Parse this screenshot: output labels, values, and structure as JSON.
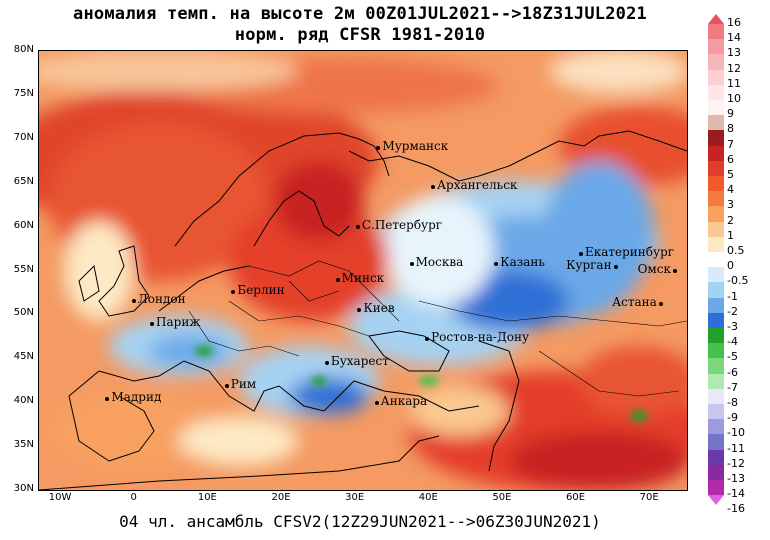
{
  "title_line1": "аномалия темп. на высоте 2м 00Z01JUL2021-->18Z31JUL2021",
  "title_line2": "норм. ряд CFSR 1981-2010",
  "footer": "04 чл. ансамбль CFSV2(12Z29JUN2021-->06Z30JUN2021)",
  "map": {
    "lon_range": [
      -13,
      75
    ],
    "lat_range": [
      30,
      80
    ],
    "lat_labels": [
      "80N",
      "75N",
      "70N",
      "65N",
      "60N",
      "55N",
      "50N",
      "45N",
      "40N",
      "35N",
      "30N"
    ],
    "lon_labels": [
      "10W",
      "0",
      "10E",
      "20E",
      "30E",
      "40E",
      "50E",
      "60E",
      "70E"
    ],
    "cities": [
      {
        "name": "Мурманск",
        "lon": 33.1,
        "lat": 68.97
      },
      {
        "name": "Архангельск",
        "lon": 40.5,
        "lat": 64.55
      },
      {
        "name": "С.Петербург",
        "lon": 30.3,
        "lat": 59.93
      },
      {
        "name": "Екатеринбург",
        "lon": 60.6,
        "lat": 56.84
      },
      {
        "name": "Москва",
        "lon": 37.6,
        "lat": 55.75
      },
      {
        "name": "Казань",
        "lon": 49.1,
        "lat": 55.79
      },
      {
        "name": "Курган",
        "lon": 65.3,
        "lat": 55.44
      },
      {
        "name": "Минск",
        "lon": 27.56,
        "lat": 53.9
      },
      {
        "name": "Омск",
        "lon": 73.37,
        "lat": 54.98
      },
      {
        "name": "Берлин",
        "lon": 13.4,
        "lat": 52.52
      },
      {
        "name": "Лондон",
        "lon": -0.13,
        "lat": 51.5
      },
      {
        "name": "Киев",
        "lon": 30.52,
        "lat": 50.45
      },
      {
        "name": "Астана",
        "lon": 71.45,
        "lat": 51.17
      },
      {
        "name": "Париж",
        "lon": 2.35,
        "lat": 48.86
      },
      {
        "name": "Ростов-на-Дону",
        "lon": 39.7,
        "lat": 47.24
      },
      {
        "name": "Бухарест",
        "lon": 26.1,
        "lat": 44.43
      },
      {
        "name": "Рим",
        "lon": 12.5,
        "lat": 41.9
      },
      {
        "name": "Мадрид",
        "lon": -3.7,
        "lat": 40.42
      },
      {
        "name": "Анкара",
        "lon": 32.85,
        "lat": 39.93
      }
    ]
  },
  "colorbar": {
    "labels": [
      "16",
      "14",
      "13",
      "12",
      "11",
      "10",
      "9",
      "8",
      "7",
      "6",
      "5",
      "4",
      "3",
      "2",
      "1",
      "0.5",
      "0",
      "-0.5",
      "-1",
      "-2",
      "-3",
      "-4",
      "-5",
      "-6",
      "-7",
      "-8",
      "-9",
      "-10",
      "-11",
      "-12",
      "-13",
      "-14",
      "-16"
    ],
    "colors": [
      "#e8505a",
      "#f07b83",
      "#f59aa0",
      "#f7b6bb",
      "#fad0d3",
      "#fde4e6",
      "#fff2f2",
      "#e0b8b0",
      "#9a1c1c",
      "#c82222",
      "#e43c2a",
      "#f25c2c",
      "#f57a3c",
      "#f8a060",
      "#fac890",
      "#fde9c4",
      "#ffffff",
      "#d6ecfa",
      "#a6d2f2",
      "#6aa8e8",
      "#2e6fd6",
      "#22a02c",
      "#46c24a",
      "#7ad87a",
      "#b0eab0",
      "#e8e8f8",
      "#c6c6ee",
      "#9c9cdc",
      "#7474c8",
      "#6a3aa8",
      "#8a2aa0",
      "#b22aa8",
      "#e060e0"
    ]
  }
}
